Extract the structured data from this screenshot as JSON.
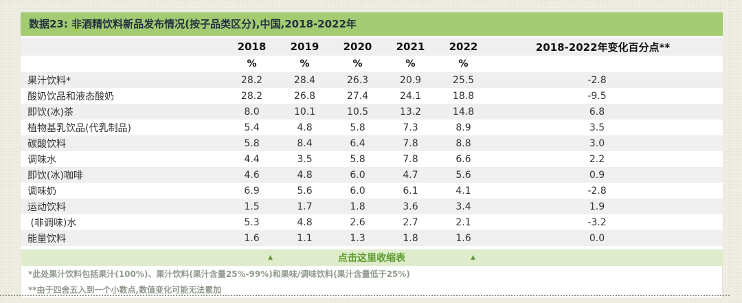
{
  "title": "数据23: 非酒精饮料新品发布情况(按子品类区分),中国,2018-2022年",
  "table": {
    "year_headers": [
      "2018",
      "2019",
      "2020",
      "2021",
      "2022"
    ],
    "change_header": "2018-2022年变化百分点**",
    "unit_label": "%",
    "rows": [
      {
        "label": "果汁饮料*",
        "values": [
          "28.2",
          "28.4",
          "26.3",
          "20.9",
          "25.5"
        ],
        "change": "-2.8"
      },
      {
        "label": "酸奶饮品和液态酸奶",
        "values": [
          "28.2",
          "26.8",
          "27.4",
          "24.1",
          "18.8"
        ],
        "change": "-9.5"
      },
      {
        "label": "即饮(冰)茶",
        "values": [
          "8.0",
          "10.1",
          "10.5",
          "13.2",
          "14.8"
        ],
        "change": "6.8"
      },
      {
        "label": "植物基乳饮品(代乳制品)",
        "values": [
          "5.4",
          "4.8",
          "5.8",
          "7.3",
          "8.9"
        ],
        "change": "3.5"
      },
      {
        "label": "碳酸饮料",
        "values": [
          "5.8",
          "8.4",
          "6.4",
          "7.8",
          "8.8"
        ],
        "change": "3.0"
      },
      {
        "label": "调味水",
        "values": [
          "4.4",
          "3.5",
          "5.8",
          "7.8",
          "6.6"
        ],
        "change": "2.2"
      },
      {
        "label": "即饮(冰)咖啡",
        "values": [
          "4.6",
          "4.8",
          "6.0",
          "4.7",
          "5.6"
        ],
        "change": "0.9"
      },
      {
        "label": "调味奶",
        "values": [
          "6.9",
          "5.6",
          "6.0",
          "6.1",
          "4.1"
        ],
        "change": "-2.8"
      },
      {
        "label": "运动饮料",
        "values": [
          "1.5",
          "1.7",
          "1.8",
          "3.6",
          "3.4"
        ],
        "change": "1.9"
      },
      {
        "label": " (非调味)水",
        "values": [
          "5.3",
          "4.8",
          "2.6",
          "2.7",
          "2.1"
        ],
        "change": "-3.2"
      },
      {
        "label": "能量饮料",
        "values": [
          "1.6",
          "1.1",
          "1.3",
          "1.8",
          "1.6"
        ],
        "change": "0.0"
      }
    ]
  },
  "collapse_bar": {
    "label": "点击这里收缩表",
    "triangle": "▲"
  },
  "footnotes": [
    "*此处果汁饮料包括果汁(100%)、果汁饮料(果汁含量25%-99%)和果味/调味饮料(果汁含量低于25%)",
    "**由于四舍五入到一个小数点,数值变化可能无法累加"
  ],
  "colors": {
    "title_bar_green": "#a2cb72",
    "collapse_bar_bg": "#dfeccb",
    "collapse_text_green": "#5e9b30",
    "row_stripe_gray": "#efefef",
    "page_background": "#f1efe3",
    "footnote_gray": "#8f998c"
  },
  "chart_data": {
    "type": "table",
    "title": "数据23: 非酒精饮料新品发布情况(按子品类区分),中国,2018-2022年",
    "unit": "%",
    "columns": [
      "2018",
      "2019",
      "2020",
      "2021",
      "2022",
      "2018-2022年变化百分点**"
    ],
    "rows": [
      {
        "label": "果汁饮料*",
        "values": [
          28.2,
          28.4,
          26.3,
          20.9,
          25.5
        ],
        "change": -2.8
      },
      {
        "label": "酸奶饮品和液态酸奶",
        "values": [
          28.2,
          26.8,
          27.4,
          24.1,
          18.8
        ],
        "change": -9.5
      },
      {
        "label": "即饮(冰)茶",
        "values": [
          8.0,
          10.1,
          10.5,
          13.2,
          14.8
        ],
        "change": 6.8
      },
      {
        "label": "植物基乳饮品(代乳制品)",
        "values": [
          5.4,
          4.8,
          5.8,
          7.3,
          8.9
        ],
        "change": 3.5
      },
      {
        "label": "碳酸饮料",
        "values": [
          5.8,
          8.4,
          6.4,
          7.8,
          8.8
        ],
        "change": 3.0
      },
      {
        "label": "调味水",
        "values": [
          4.4,
          3.5,
          5.8,
          7.8,
          6.6
        ],
        "change": 2.2
      },
      {
        "label": "即饮(冰)咖啡",
        "values": [
          4.6,
          4.8,
          6.0,
          4.7,
          5.6
        ],
        "change": 0.9
      },
      {
        "label": "调味奶",
        "values": [
          6.9,
          5.6,
          6.0,
          6.1,
          4.1
        ],
        "change": -2.8
      },
      {
        "label": "运动饮料",
        "values": [
          1.5,
          1.7,
          1.8,
          3.6,
          3.4
        ],
        "change": 1.9
      },
      {
        "label": "(非调味)水",
        "values": [
          5.3,
          4.8,
          2.6,
          2.7,
          2.1
        ],
        "change": -3.2
      },
      {
        "label": "能量饮料",
        "values": [
          1.6,
          1.1,
          1.3,
          1.8,
          1.6
        ],
        "change": 0.0
      }
    ]
  }
}
